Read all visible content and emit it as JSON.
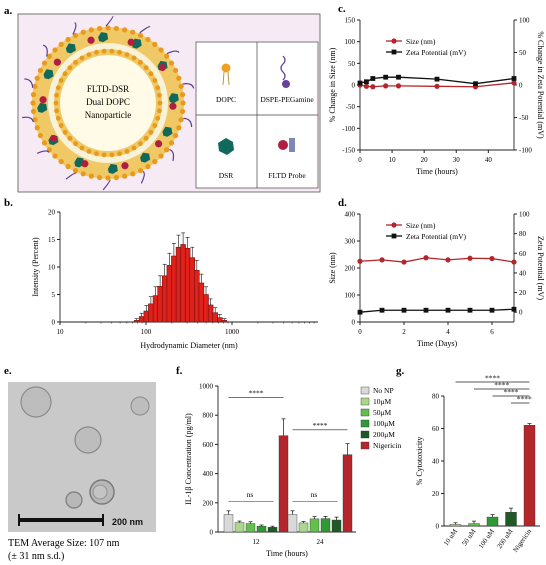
{
  "panels": {
    "a": {
      "label": "a.",
      "center_text": [
        "FLTD-DSR",
        "Dual DOPC",
        "Nanoparticle"
      ],
      "legend_items": [
        "DOPC",
        "DSPE-PEGamine",
        "DSR",
        "FLTD Probe"
      ]
    },
    "b": {
      "label": "b."
    },
    "c": {
      "label": "c."
    },
    "d": {
      "label": "d."
    },
    "e": {
      "label": "e.",
      "scale_bar": "200 nm",
      "caption_line1": "TEM Average Size: 107 nm",
      "caption_line2": "(± 31 nm s.d.)"
    },
    "f": {
      "label": "f.",
      "ns1": "ns",
      "ns2": "ns",
      "sig1": "****",
      "sig2": "****"
    },
    "g": {
      "label": "g.",
      "sig": [
        "****",
        "****",
        "****",
        "****"
      ]
    }
  },
  "colors": {
    "red": "#b5262c",
    "black": "#111111",
    "bar_red": "#e0201a"
  },
  "chart_data": [
    {
      "id": "b",
      "type": "bar",
      "xlabel": "Hydrodynamic Diameter  (nm)",
      "ylabel": "Intensity (Percent)",
      "xscale": "log",
      "xlim": [
        10,
        10000
      ],
      "ylim": [
        0,
        20
      ],
      "xticks": [
        "10",
        "100",
        "1000"
      ],
      "yticks": [
        "0",
        "5",
        "10",
        "15",
        "20"
      ],
      "x": [
        78,
        89,
        101,
        114,
        129,
        146,
        165,
        187,
        211,
        239,
        270,
        305,
        345,
        390,
        441,
        499,
        564,
        638,
        721,
        815
      ],
      "values": [
        0.3,
        1.0,
        2.0,
        3.3,
        4.8,
        6.5,
        8.4,
        10.3,
        12.0,
        13.6,
        14.1,
        13.4,
        11.7,
        9.4,
        7.1,
        5.0,
        3.1,
        1.7,
        0.8,
        0.3
      ],
      "errors": [
        0.3,
        0.6,
        1.0,
        1.3,
        1.6,
        1.9,
        2.1,
        2.2,
        2.3,
        2.2,
        2.1,
        2.0,
        1.9,
        1.8,
        1.6,
        1.4,
        1.1,
        0.9,
        0.6,
        0.3
      ]
    },
    {
      "id": "c",
      "type": "line",
      "xlabel": "Time (hours)",
      "ylabel": "% Change in Size (nm)",
      "ylabel_right": "% Change in Zeta Potential (mV)",
      "xlim": [
        0,
        48
      ],
      "ylim": [
        -150,
        150
      ],
      "ylim_right": [
        -100,
        100
      ],
      "xticks": [
        "0",
        "10",
        "20",
        "30",
        "40"
      ],
      "yticks": [
        "-150",
        "-100",
        "-50",
        "0",
        "50",
        "100",
        "150"
      ],
      "yticks_right": [
        "-100",
        "-50",
        "0",
        "50",
        "100"
      ],
      "series": [
        {
          "name": "Size (nm)",
          "axis": "left",
          "color": "#b5262c",
          "x": [
            0,
            2,
            4,
            8,
            12,
            24,
            36,
            48
          ],
          "y": [
            0,
            -3,
            -4,
            -2,
            -2,
            -3,
            -4,
            5
          ]
        },
        {
          "name": "Zeta Potential (mV)",
          "axis": "right",
          "color": "#111111",
          "x": [
            0,
            2,
            4,
            8,
            12,
            24,
            36,
            48
          ],
          "y": [
            3,
            5,
            10,
            12,
            12,
            9,
            2,
            10
          ]
        }
      ]
    },
    {
      "id": "d",
      "type": "line",
      "xlabel": "Time (Days)",
      "ylabel": "Size (nm)",
      "ylabel_right": "Zeta Potential (mV)",
      "xlim": [
        0,
        7
      ],
      "ylim": [
        0,
        400
      ],
      "ylim_right": [
        -10,
        100
      ],
      "xticks": [
        "0",
        "2",
        "4",
        "6"
      ],
      "yticks": [
        "0",
        "100",
        "200",
        "300",
        "400"
      ],
      "yticks_right": [
        "0",
        "20",
        "40",
        "60",
        "80",
        "100"
      ],
      "series": [
        {
          "name": "Size (nm)",
          "axis": "left",
          "color": "#b5262c",
          "x": [
            0,
            1,
            2,
            3,
            4,
            5,
            6,
            7
          ],
          "y": [
            225,
            230,
            222,
            238,
            230,
            236,
            235,
            222
          ]
        },
        {
          "name": "Zeta Potential (mV)",
          "axis": "right",
          "color": "#111111",
          "x": [
            0,
            1,
            2,
            3,
            4,
            5,
            6,
            7
          ],
          "y": [
            0,
            2,
            2,
            2,
            2,
            2,
            2,
            3
          ]
        }
      ]
    },
    {
      "id": "f",
      "type": "bar",
      "xlabel": "Time (hours)",
      "ylabel": "IL-1β Concentration (pg/ml)",
      "ylim": [
        0,
        1000
      ],
      "yticks": [
        "0",
        "200",
        "400",
        "600",
        "800",
        "1000"
      ],
      "categories": [
        "12",
        "24"
      ],
      "series": [
        {
          "name": "No NP",
          "color": "#d9d9d9",
          "values": [
            120,
            120
          ],
          "errors": [
            25,
            25
          ]
        },
        {
          "name": "10μM",
          "color": "#a8d98a",
          "values": [
            65,
            62
          ],
          "errors": [
            10,
            10
          ]
        },
        {
          "name": "50μM",
          "color": "#63bf4e",
          "values": [
            58,
            90
          ],
          "errors": [
            12,
            15
          ]
        },
        {
          "name": "100μM",
          "color": "#2f9a34",
          "values": [
            40,
            92
          ],
          "errors": [
            8,
            15
          ]
        },
        {
          "name": "200μM",
          "color": "#1f5a26",
          "values": [
            32,
            82
          ],
          "errors": [
            8,
            20
          ]
        },
        {
          "name": "Nigericin",
          "color": "#b5262c",
          "values": [
            660,
            530
          ],
          "errors": [
            115,
            75
          ]
        }
      ]
    },
    {
      "id": "g",
      "type": "bar",
      "ylabel": "% Cytotoxicity",
      "ylim": [
        0,
        80
      ],
      "yticks": [
        "0",
        "20",
        "40",
        "60",
        "80"
      ],
      "categories": [
        "10 uM",
        "50 uM",
        "100 uM",
        "200 uM",
        "Nigericin"
      ],
      "values": [
        1,
        1.5,
        5.5,
        8.5,
        62
      ],
      "errors": [
        1,
        1.5,
        1.5,
        2.5,
        1
      ],
      "colors": [
        "#a8d98a",
        "#63bf4e",
        "#2f9a34",
        "#1f5a26",
        "#b5262c"
      ]
    }
  ]
}
